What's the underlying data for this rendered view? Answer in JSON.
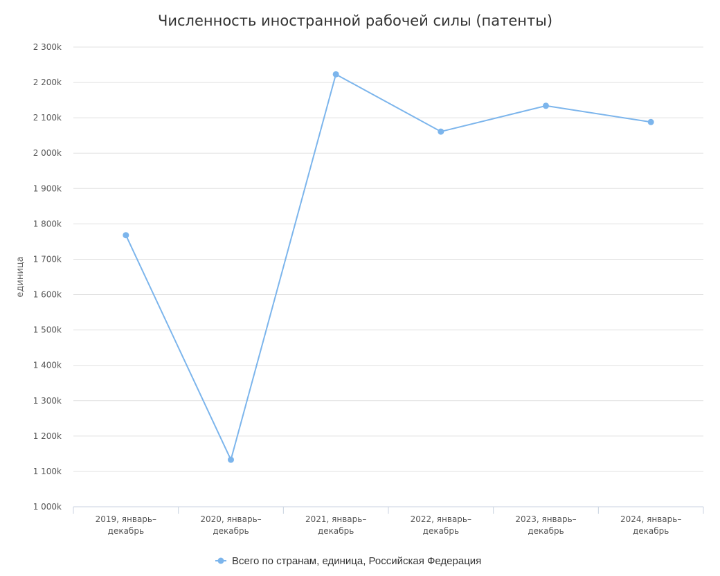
{
  "chart_data": {
    "type": "line",
    "title": "Численность иностранной рабочей силы (патенты)",
    "ylabel": "единица",
    "xlabel": "",
    "ylim": [
      1000000,
      2300000
    ],
    "yticks": [
      1000000,
      1100000,
      1200000,
      1300000,
      1400000,
      1500000,
      1600000,
      1700000,
      1800000,
      1900000,
      2000000,
      2100000,
      2200000,
      2300000
    ],
    "ytick_labels": [
      "1 000k",
      "1 100k",
      "1 200k",
      "1 300k",
      "1 400k",
      "1 500k",
      "1 600k",
      "1 700k",
      "1 800k",
      "1 900k",
      "2 000k",
      "2 100k",
      "2 200k",
      "2 300k"
    ],
    "categories": [
      [
        "2019, январь–",
        "декабрь"
      ],
      [
        "2020, январь–",
        "декабрь"
      ],
      [
        "2021, январь–",
        "декабрь"
      ],
      [
        "2022, январь–",
        "декабрь"
      ],
      [
        "2023, январь–",
        "декабрь"
      ],
      [
        "2024, январь–",
        "декабрь"
      ]
    ],
    "series": [
      {
        "name": "Всего по странам, единица, Российская Федерация",
        "color": "#7cb5ec",
        "values": [
          1768000,
          1133000,
          2223000,
          2061000,
          2134000,
          2088000
        ]
      }
    ],
    "grid": true,
    "legend": "bottom-center"
  }
}
